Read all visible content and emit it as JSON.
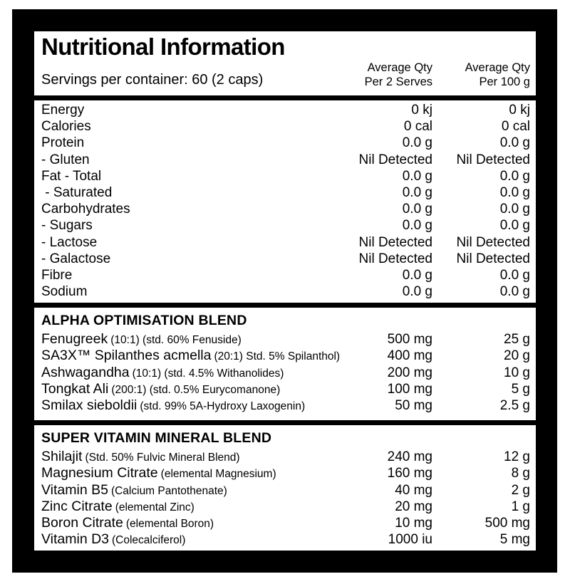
{
  "colors": {
    "frame": "#000000",
    "panel": "#ffffff",
    "text": "#000000"
  },
  "header": {
    "title": "Nutritional Information",
    "servings": "Servings per container: 60 (2 caps)",
    "columns": [
      {
        "line1": "Average Qty",
        "line2": "Per 2 Serves"
      },
      {
        "line1": "Average Qty",
        "line2": "Per 100 g"
      }
    ]
  },
  "nutrition_rows": [
    {
      "name": "Energy",
      "per_serve": "0 kj",
      "per_100g": "0 kj"
    },
    {
      "name": "Calories",
      "per_serve": "0 cal",
      "per_100g": "0 cal"
    },
    {
      "name": "Protein",
      "per_serve": "0.0 g",
      "per_100g": "0.0 g"
    },
    {
      "name": "- Gluten",
      "per_serve": "Nil Detected",
      "per_100g": "Nil Detected"
    },
    {
      "name": "Fat - Total",
      "per_serve": "0.0 g",
      "per_100g": "0.0 g"
    },
    {
      "name": " - Saturated",
      "per_serve": "0.0 g",
      "per_100g": "0.0 g"
    },
    {
      "name": "Carbohydrates",
      "per_serve": "0.0 g",
      "per_100g": "0.0 g"
    },
    {
      "name": "- Sugars",
      "per_serve": "0.0 g",
      "per_100g": "0.0 g"
    },
    {
      "name": "- Lactose",
      "per_serve": "Nil Detected",
      "per_100g": "Nil Detected"
    },
    {
      "name": "- Galactose",
      "per_serve": "Nil Detected",
      "per_100g": "Nil Detected"
    },
    {
      "name": "Fibre",
      "per_serve": "0.0 g",
      "per_100g": "0.0 g"
    },
    {
      "name": "Sodium",
      "per_serve": "0.0 g",
      "per_100g": "0.0 g"
    }
  ],
  "blends": [
    {
      "heading": "ALPHA OPTIMISATION BLEND",
      "rows": [
        {
          "name": "Fenugreek",
          "detail": "(10:1) (std. 60% Fenuside)",
          "per_serve": "500 mg",
          "per_100g": "25 g"
        },
        {
          "name": "SA3X™ Spilanthes acmella",
          "detail": "(20:1) Std. 5% Spilanthol)",
          "per_serve": "400 mg",
          "per_100g": "20 g"
        },
        {
          "name": "Ashwagandha",
          "detail": "(10:1) (std. 4.5% Withanolides)",
          "per_serve": "200 mg",
          "per_100g": "10 g"
        },
        {
          "name": "Tongkat Ali",
          "detail": "(200:1) (std. 0.5% Eurycomanone)",
          "per_serve": "100 mg",
          "per_100g": "5 g"
        },
        {
          "name": "Smilax sieboldii",
          "detail": "(std. 99% 5A-Hydroxy Laxogenin)",
          "per_serve": "50 mg",
          "per_100g": "2.5 g"
        }
      ]
    },
    {
      "heading": "SUPER VITAMIN MINERAL BLEND",
      "rows": [
        {
          "name": "Shilajit",
          "detail": "(Std. 50% Fulvic Mineral Blend)",
          "per_serve": "240 mg",
          "per_100g": "12 g"
        },
        {
          "name": "Magnesium Citrate",
          "detail": "(elemental Magnesium)",
          "per_serve": "160 mg",
          "per_100g": "8 g"
        },
        {
          "name": "Vitamin B5",
          "detail": "(Calcium Pantothenate)",
          "per_serve": "40 mg",
          "per_100g": "2 g"
        },
        {
          "name": "Zinc Citrate",
          "detail": "(elemental Zinc)",
          "per_serve": "20 mg",
          "per_100g": "1 g"
        },
        {
          "name": "Boron Citrate",
          "detail": "(elemental Boron)",
          "per_serve": "10 mg",
          "per_100g": "500 mg"
        },
        {
          "name": "Vitamin D3",
          "detail": "(Colecalciferol)",
          "per_serve": "1000 iu",
          "per_100g": "5 mg"
        }
      ]
    }
  ]
}
